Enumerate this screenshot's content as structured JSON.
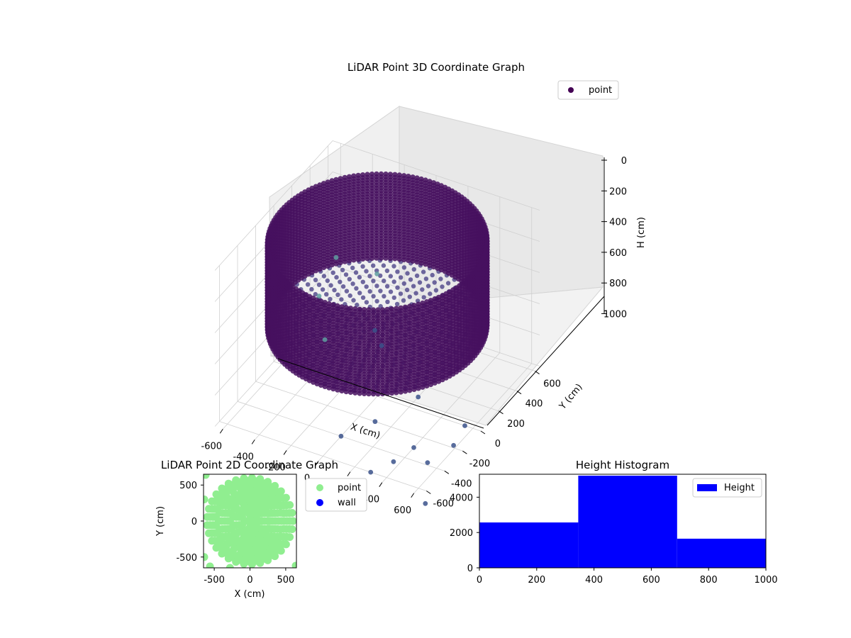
{
  "chart_data": [
    {
      "type": "scatter",
      "projection": "3d",
      "title": "LiDAR Point 3D Coordinate Graph",
      "xlabel": "X (cm)",
      "ylabel": "Y (cm)",
      "zlabel": "H (cm)",
      "xlim": [
        -650,
        650
      ],
      "ylim": [
        -650,
        650
      ],
      "zlim": [
        0,
        1000
      ],
      "z_inverted": true,
      "xticks": [
        "-600",
        "-400",
        "-200",
        "0",
        "200",
        "400",
        "600"
      ],
      "yticks": [
        "-600",
        "-400",
        "-200",
        "0",
        "200",
        "400",
        "600"
      ],
      "zticks": [
        "0",
        "200",
        "400",
        "600",
        "800",
        "1000"
      ],
      "legend": {
        "placement": "upper-right",
        "entries": [
          {
            "name": "point",
            "color": "#440154"
          }
        ]
      },
      "colormap": "viridis",
      "series": [
        {
          "name": "point",
          "structure": "cylindrical wall of points (radius ~600 cm, height 0–550 cm) plus disc floor at ~550 cm and scattered outliers",
          "wall": {
            "radius": 600,
            "h_min": 0,
            "h_max": 550,
            "color": "#46105f"
          },
          "floor": {
            "h": 550,
            "radius": 600,
            "color": "#433a83"
          },
          "outliers": [
            {
              "x": -600,
              "y": 600,
              "h": 700
            },
            {
              "x": -650,
              "y": 500,
              "h": 900
            },
            {
              "x": -400,
              "y": 700,
              "h": 800
            },
            {
              "x": -300,
              "y": 500,
              "h": 1000
            },
            {
              "x": 200,
              "y": 100,
              "h": 1000
            },
            {
              "x": 400,
              "y": -300,
              "h": 1000
            },
            {
              "x": 600,
              "y": -500,
              "h": 900
            },
            {
              "x": 700,
              "y": -700,
              "h": 1000
            },
            {
              "x": -200,
              "y": 400,
              "h": 1000
            },
            {
              "x": 100,
              "y": -200,
              "h": 1000
            },
            {
              "x": 500,
              "y": -700,
              "h": 800
            },
            {
              "x": 300,
              "y": -600,
              "h": 1000
            },
            {
              "x": 0,
              "y": -400,
              "h": 1000
            },
            {
              "x": -500,
              "y": 300,
              "h": 1000
            },
            {
              "x": 650,
              "y": -300,
              "h": 900
            },
            {
              "x": 550,
              "y": 0,
              "h": 1000
            }
          ]
        }
      ]
    },
    {
      "type": "scatter",
      "title": "LiDAR Point 2D Coordinate Graph",
      "xlabel": "X (cm)",
      "ylabel": "Y (cm)",
      "xlim": [
        -650,
        650
      ],
      "ylim": [
        -650,
        650
      ],
      "xticks": [
        "-500",
        "0",
        "500"
      ],
      "yticks": [
        "-500",
        "0",
        "500"
      ],
      "legend": {
        "placement": "outside-right",
        "entries": [
          {
            "name": "point",
            "color": "#90ee90"
          },
          {
            "name": "wall",
            "color": "#0000ff"
          }
        ]
      },
      "series": [
        {
          "name": "point",
          "color": "#90ee90",
          "structure": "filled disc of points radius ~600 cm with sparse outliers"
        },
        {
          "name": "wall",
          "color": "#0000ff",
          "points": []
        }
      ]
    },
    {
      "type": "bar",
      "subtype": "histogram",
      "title": "Height Histogram",
      "xlabel": "",
      "ylabel": "",
      "xlim": [
        0,
        1000
      ],
      "ylim": [
        0,
        5300
      ],
      "xticks": [
        "0",
        "200",
        "400",
        "600",
        "800",
        "1000"
      ],
      "yticks": [
        "0",
        "2000",
        "4000"
      ],
      "legend": {
        "placement": "upper-right",
        "entries": [
          {
            "name": "Height",
            "color": "#0000ff"
          }
        ]
      },
      "series": [
        {
          "name": "Height",
          "color": "#0000ff",
          "bins": [
            [
              0,
              345,
              2570
            ],
            [
              345,
              690,
              5220
            ],
            [
              690,
              1000,
              1650
            ]
          ]
        }
      ]
    }
  ]
}
